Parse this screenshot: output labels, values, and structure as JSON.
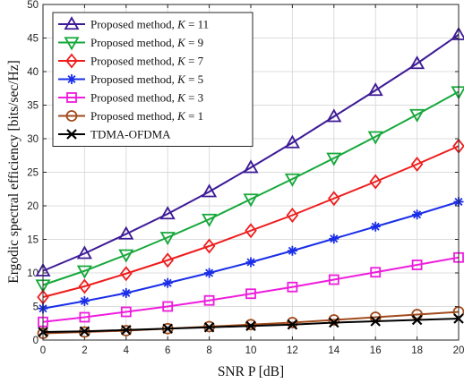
{
  "chart_data": {
    "type": "line",
    "x": [
      0,
      2,
      4,
      6,
      8,
      10,
      12,
      14,
      16,
      18,
      20
    ],
    "xticks": [
      0,
      2,
      4,
      6,
      8,
      10,
      12,
      14,
      16,
      18,
      20
    ],
    "yticks": [
      0,
      5,
      10,
      15,
      20,
      25,
      30,
      35,
      40,
      45,
      50
    ],
    "xlim": [
      0,
      20
    ],
    "ylim": [
      0,
      50
    ],
    "xlabel": "SNR P [dB]",
    "ylabel": "Ergodic spectral efficiency [bits/sec/Hz]",
    "grid": true,
    "legend_position": "top-left",
    "series": [
      {
        "name": "Proposed method, K = 11",
        "color": "#3d1a96",
        "marker": "triangle-up",
        "values": [
          10.3,
          12.9,
          15.8,
          18.8,
          22.1,
          25.7,
          29.4,
          33.3,
          37.2,
          41.2,
          45.5
        ]
      },
      {
        "name": "Proposed method, K = 9",
        "color": "#16a83b",
        "marker": "triangle-down",
        "values": [
          8.2,
          10.3,
          12.7,
          15.3,
          18.0,
          21.0,
          24.0,
          27.1,
          30.3,
          33.6,
          37.0
        ]
      },
      {
        "name": "Proposed method, K = 7",
        "color": "#ee1c1c",
        "marker": "diamond",
        "values": [
          6.4,
          8.0,
          9.9,
          11.9,
          14.0,
          16.3,
          18.6,
          21.1,
          23.6,
          26.2,
          28.9
        ]
      },
      {
        "name": "Proposed method, K = 5",
        "color": "#1a2ee8",
        "marker": "asterisk",
        "values": [
          4.7,
          5.8,
          7.0,
          8.5,
          10.0,
          11.6,
          13.3,
          15.1,
          16.9,
          18.7,
          20.6
        ]
      },
      {
        "name": "Proposed method, K = 3",
        "color": "#ee1cdc",
        "marker": "square",
        "values": [
          2.7,
          3.4,
          4.2,
          5.0,
          5.9,
          6.9,
          7.9,
          9.0,
          10.1,
          11.2,
          12.3
        ]
      },
      {
        "name": "Proposed method, K = 1",
        "color": "#a04a1c",
        "marker": "circle",
        "values": [
          1.0,
          1.2,
          1.4,
          1.7,
          2.0,
          2.3,
          2.6,
          3.0,
          3.4,
          3.8,
          4.2
        ]
      },
      {
        "name": "TDMA-OFDMA",
        "color": "#000000",
        "marker": "x",
        "values": [
          1.2,
          1.3,
          1.5,
          1.7,
          1.9,
          2.1,
          2.3,
          2.6,
          2.8,
          3.0,
          3.2
        ]
      }
    ]
  }
}
